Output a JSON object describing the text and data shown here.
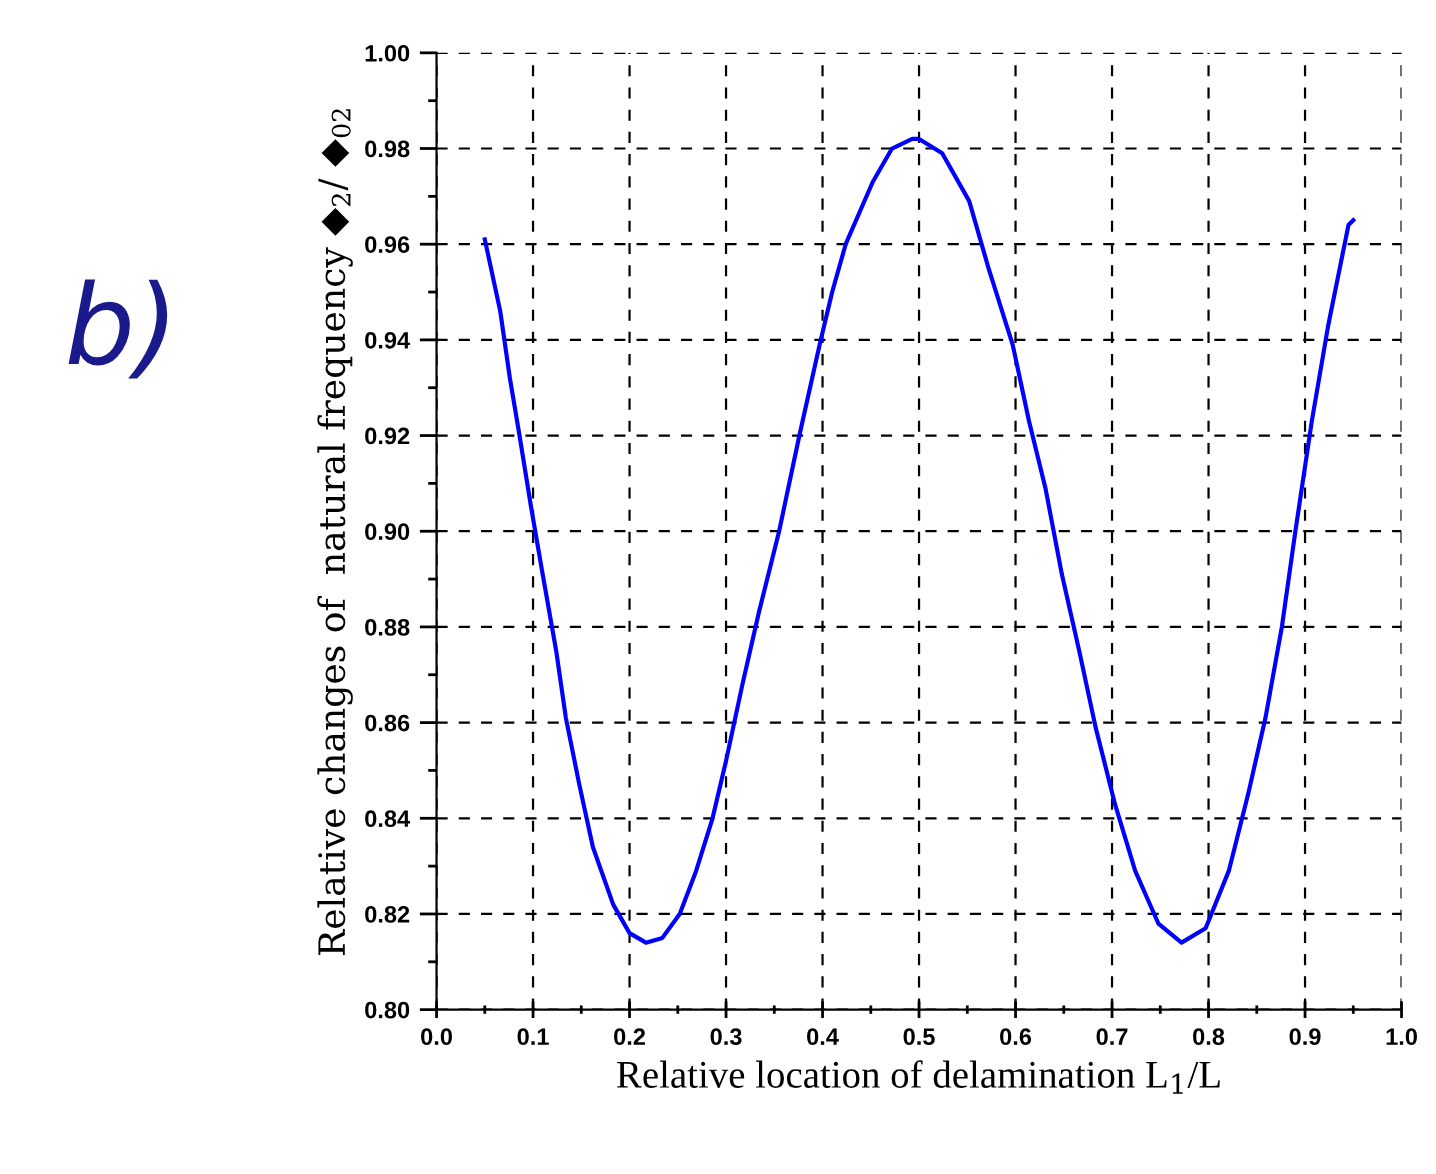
{
  "chart_data": {
    "type": "line",
    "xlabel": "Relative location of delamination L$_{1}$/L",
    "ylabel": "Relative changes of  natural frequency ◆$_{2}$/ ◆$_{02}$",
    "annotations": [
      "b)"
    ],
    "series": [
      {
        "color": "#0000ff",
        "x": [
          0.05,
          0.066,
          0.076,
          0.086,
          0.098,
          0.11,
          0.124,
          0.134,
          0.148,
          0.162,
          0.183,
          0.2,
          0.217,
          0.234,
          0.252,
          0.269,
          0.286,
          0.3,
          0.317,
          0.334,
          0.355,
          0.376,
          0.397,
          0.41,
          0.424,
          0.452,
          0.472,
          0.493,
          0.5,
          0.524,
          0.552,
          0.572,
          0.597,
          0.614,
          0.631,
          0.648,
          0.666,
          0.683,
          0.703,
          0.724,
          0.748,
          0.772,
          0.797,
          0.821,
          0.841,
          0.859,
          0.876,
          0.89,
          0.907,
          0.924,
          0.945,
          0.95
        ],
        "values": [
          0.961,
          0.946,
          0.932,
          0.92,
          0.905,
          0.891,
          0.875,
          0.861,
          0.847,
          0.834,
          0.822,
          0.816,
          0.814,
          0.815,
          0.82,
          0.829,
          0.84,
          0.852,
          0.868,
          0.883,
          0.9,
          0.92,
          0.939,
          0.95,
          0.96,
          0.973,
          0.98,
          0.982,
          0.982,
          0.979,
          0.969,
          0.955,
          0.939,
          0.923,
          0.909,
          0.891,
          0.875,
          0.859,
          0.843,
          0.829,
          0.818,
          0.814,
          0.817,
          0.829,
          0.845,
          0.861,
          0.88,
          0.9,
          0.923,
          0.943,
          0.964,
          0.965
        ]
      }
    ],
    "xlim": [
      0.0,
      1.0
    ],
    "xticks": [
      {
        "value": 0.0,
        "label": "0.0"
      },
      0.1,
      0.2,
      0.3,
      0.4,
      0.5,
      0.6,
      0.7,
      0.8,
      0.9,
      {
        "value": 1.0,
        "label": "1.0"
      }
    ],
    "ylim": [
      0.8,
      1.0
    ],
    "yticks": [
      {
        "value": 0.8,
        "label": "0.80"
      },
      {
        "value": 0.82,
        "label": "0.82"
      },
      {
        "value": 0.84,
        "label": "0.84"
      },
      {
        "value": 0.86,
        "label": "0.86"
      },
      {
        "value": 0.88,
        "label": "0.88"
      },
      {
        "value": 0.9,
        "label": "0.90"
      },
      {
        "value": 0.92,
        "label": "0.92"
      },
      {
        "value": 0.94,
        "label": "0.94"
      },
      {
        "value": 0.96,
        "label": "0.96"
      },
      {
        "value": 0.98,
        "label": "0.98"
      },
      {
        "value": 1.0,
        "label": "1.00"
      }
    ],
    "grid": true,
    "marker": "none",
    "line_style": "solid"
  }
}
